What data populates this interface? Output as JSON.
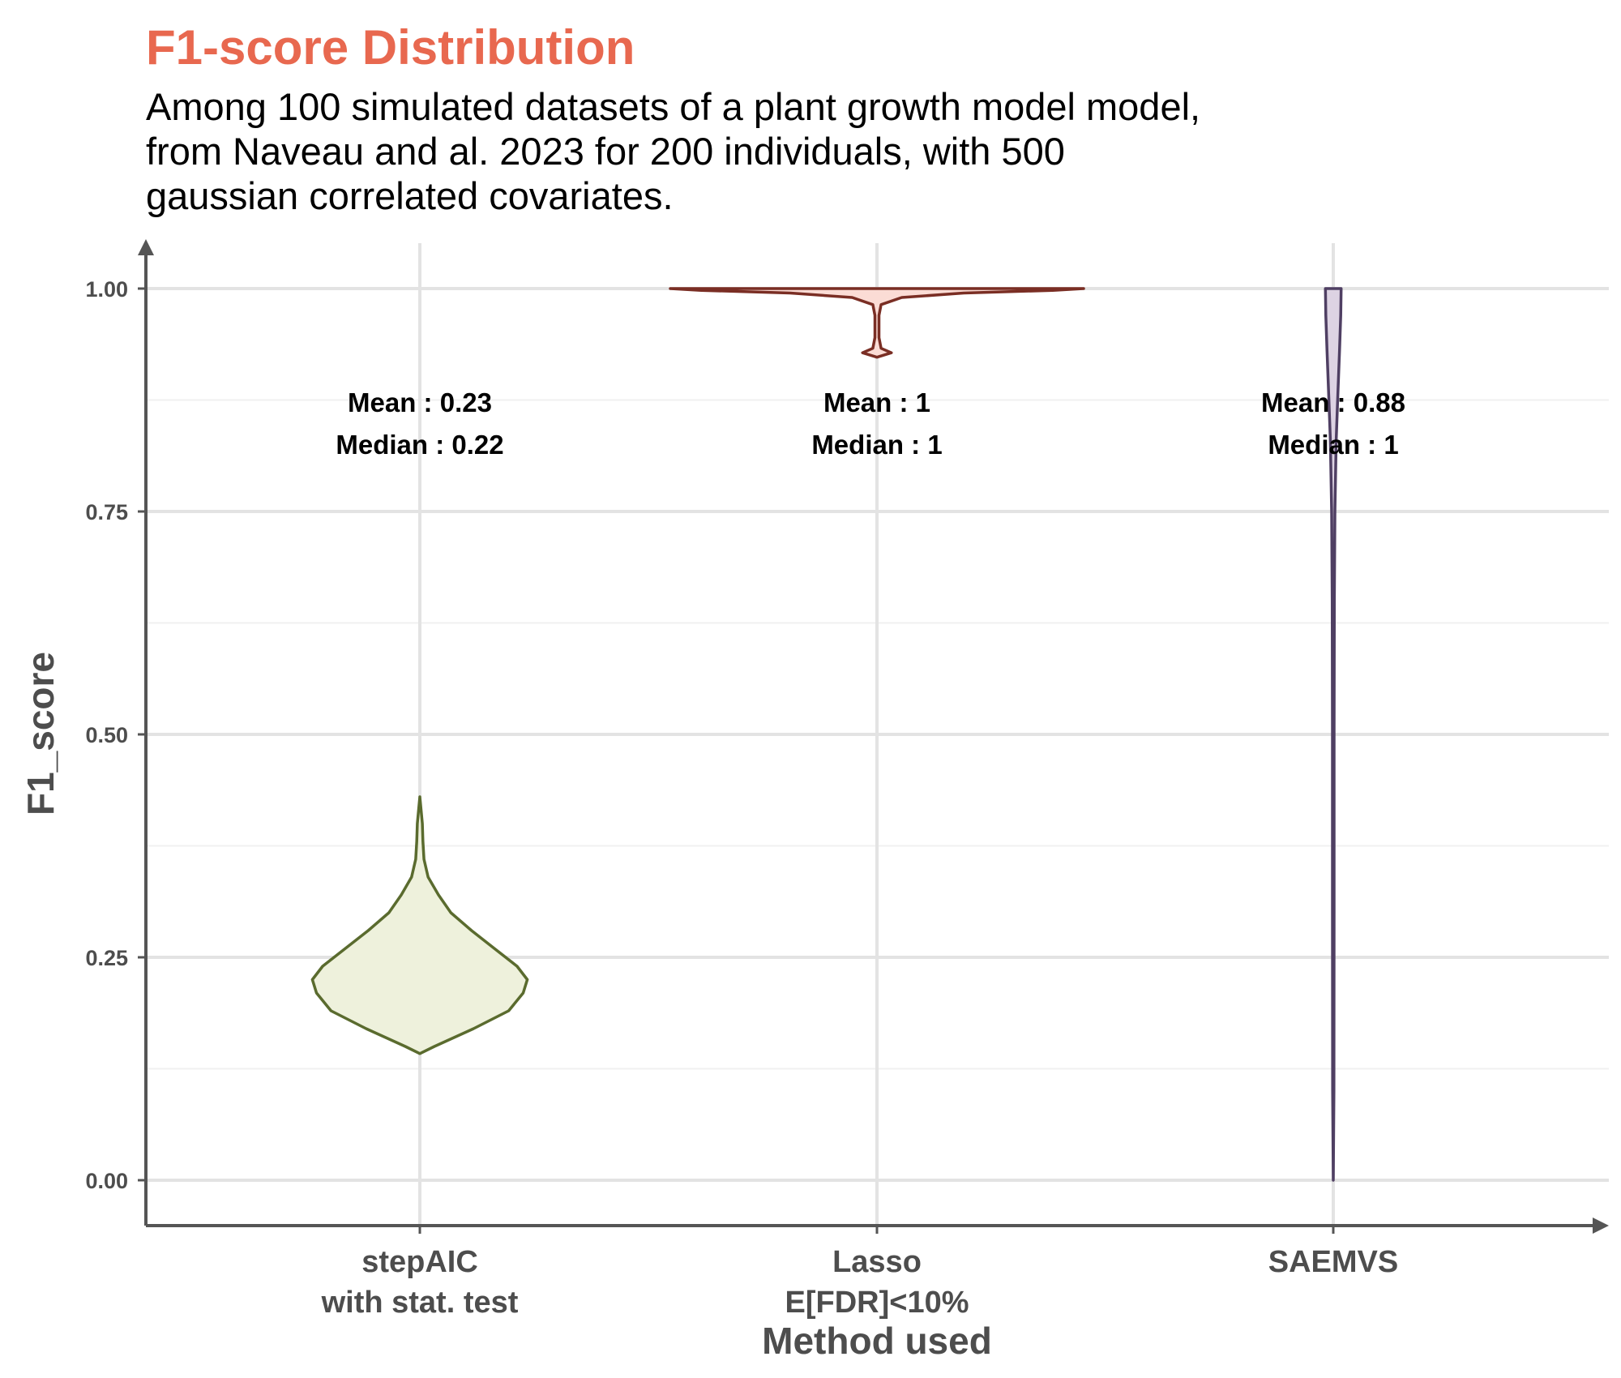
{
  "chart_data": {
    "type": "violin",
    "title": "F1-score Distribution",
    "subtitle_lines": [
      "Among 100 simulated datasets of a plant growth model model,",
      "from Naveau and al. 2023 for 200 individuals, with 500",
      "gaussian correlated covariates."
    ],
    "xlabel": "Method used",
    "ylabel": "F1_score",
    "ylim": [
      -0.05,
      1.05
    ],
    "yticks": [
      "0.00",
      "0.25",
      "0.50",
      "0.75",
      "1.00"
    ],
    "ytick_values": [
      0,
      0.25,
      0.5,
      0.75,
      1.0
    ],
    "grid": true,
    "series": [
      {
        "name": "stepAIC with stat. test",
        "label_lines": [
          "stepAIC",
          "with stat. test"
        ],
        "fill": "#eef1dc",
        "stroke": "#5a6b2e",
        "mean_text": "Mean : 0.23",
        "median_text": "Median : 0.22",
        "mean": 0.23,
        "median": 0.22,
        "density": [
          [
            0.142,
            0.0
          ],
          [
            0.15,
            0.07
          ],
          [
            0.17,
            0.26
          ],
          [
            0.19,
            0.43
          ],
          [
            0.21,
            0.5
          ],
          [
            0.225,
            0.52
          ],
          [
            0.24,
            0.47
          ],
          [
            0.26,
            0.36
          ],
          [
            0.28,
            0.25
          ],
          [
            0.3,
            0.15
          ],
          [
            0.32,
            0.09
          ],
          [
            0.34,
            0.04
          ],
          [
            0.36,
            0.02
          ],
          [
            0.38,
            0.015
          ],
          [
            0.4,
            0.012
          ],
          [
            0.43,
            0.0
          ]
        ]
      },
      {
        "name": "Lasso E[FDR]<10%",
        "label_lines": [
          "Lasso",
          "E[FDR]<10%"
        ],
        "fill": "#fbdcd5",
        "stroke": "#7a2e24",
        "mean_text": "Mean : 1",
        "median_text": "Median : 1",
        "mean": 1,
        "median": 1,
        "density": [
          [
            0.923,
            0.0
          ],
          [
            0.928,
            0.07
          ],
          [
            0.933,
            0.02
          ],
          [
            0.945,
            0.01
          ],
          [
            0.97,
            0.01
          ],
          [
            0.982,
            0.02
          ],
          [
            0.99,
            0.12
          ],
          [
            0.995,
            0.42
          ],
          [
            0.998,
            0.85
          ],
          [
            1.0,
            1.0
          ]
        ]
      },
      {
        "name": "SAEMVS",
        "label_lines": [
          "SAEMVS"
        ],
        "fill": "#ddd3e3",
        "stroke": "#4f3f63",
        "mean_text": "Mean : 0.88",
        "median_text": "Median : 1",
        "mean": 0.88,
        "median": 1,
        "density": [
          [
            0.0,
            0.0
          ],
          [
            0.1,
            0.003
          ],
          [
            0.3,
            0.004
          ],
          [
            0.5,
            0.004
          ],
          [
            0.65,
            0.005
          ],
          [
            0.75,
            0.008
          ],
          [
            0.83,
            0.014
          ],
          [
            0.88,
            0.022
          ],
          [
            0.93,
            0.03
          ],
          [
            0.97,
            0.036
          ],
          [
            1.0,
            0.038
          ]
        ]
      }
    ]
  }
}
